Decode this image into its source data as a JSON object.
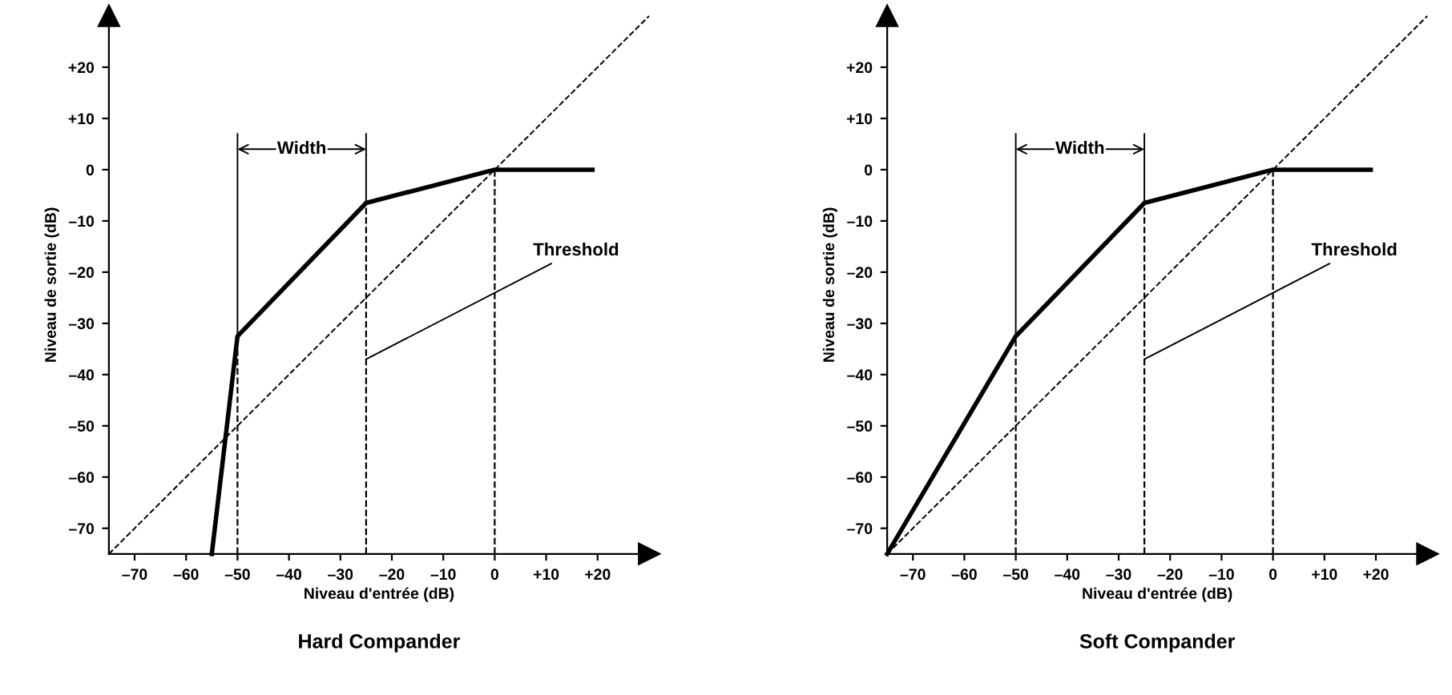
{
  "chart_data": [
    {
      "type": "line",
      "title": "Hard Compander",
      "xlabel": "Niveau d'entrée (dB)",
      "ylabel": "Niveau de sortie (dB)",
      "xlim": [
        -75,
        30
      ],
      "ylim": [
        -75,
        30
      ],
      "xticks": [
        {
          "value": -70,
          "label": "–70"
        },
        {
          "value": -60,
          "label": "–60"
        },
        {
          "value": -50,
          "label": "–50"
        },
        {
          "value": -40,
          "label": "–40"
        },
        {
          "value": -30,
          "label": "–30"
        },
        {
          "value": -20,
          "label": "–20"
        },
        {
          "value": -10,
          "label": "–10"
        },
        0,
        {
          "value": 10,
          "label": "+10"
        },
        {
          "value": 20,
          "label": "+20"
        }
      ],
      "yticks": [
        {
          "value": -70,
          "label": "–70"
        },
        {
          "value": -60,
          "label": "–60"
        },
        {
          "value": -50,
          "label": "–50"
        },
        {
          "value": -40,
          "label": "–40"
        },
        {
          "value": -30,
          "label": "–30"
        },
        {
          "value": -20,
          "label": "–20"
        },
        {
          "value": -10,
          "label": "–10"
        },
        0,
        {
          "value": 10,
          "label": "+10"
        },
        {
          "value": 20,
          "label": "+20"
        }
      ],
      "series": [
        {
          "color": "#000000",
          "line_style": "dashed",
          "x": [
            -75,
            30
          ],
          "values": [
            -75,
            30
          ]
        },
        {
          "color": "#000000",
          "line_style": "solid",
          "x": [
            -55,
            -50,
            -25,
            0,
            19
          ],
          "values": [
            -75,
            -32.5,
            -6.5,
            0,
            0
          ]
        }
      ],
      "ref_lines": [
        {
          "axis": "x",
          "value": -50,
          "line_style": "dashed"
        },
        {
          "axis": "x",
          "value": -25,
          "line_style": "dashed"
        },
        {
          "axis": "x",
          "value": 0,
          "line_style": "dashed"
        }
      ],
      "annotations": [
        "Width",
        {
          "text": "Threshold",
          "x": -25,
          "y": -37
        }
      ],
      "grid": false,
      "legend": false,
      "marker": "none"
    },
    {
      "type": "line",
      "title": "Soft Compander",
      "xlabel": "Niveau d'entrée (dB)",
      "ylabel": "Niveau de sortie (dB)",
      "xlim": [
        -75,
        30
      ],
      "ylim": [
        -75,
        30
      ],
      "xticks": [
        {
          "value": -70,
          "label": "–70"
        },
        {
          "value": -60,
          "label": "–60"
        },
        {
          "value": -50,
          "label": "–50"
        },
        {
          "value": -40,
          "label": "–40"
        },
        {
          "value": -30,
          "label": "–30"
        },
        {
          "value": -20,
          "label": "–20"
        },
        {
          "value": -10,
          "label": "–10"
        },
        0,
        {
          "value": 10,
          "label": "+10"
        },
        {
          "value": 20,
          "label": "+20"
        }
      ],
      "yticks": [
        {
          "value": -70,
          "label": "–70"
        },
        {
          "value": -60,
          "label": "–60"
        },
        {
          "value": -50,
          "label": "–50"
        },
        {
          "value": -40,
          "label": "–40"
        },
        {
          "value": -30,
          "label": "–30"
        },
        {
          "value": -20,
          "label": "–20"
        },
        {
          "value": -10,
          "label": "–10"
        },
        0,
        {
          "value": 10,
          "label": "+10"
        },
        {
          "value": 20,
          "label": "+20"
        }
      ],
      "series": [
        {
          "color": "#000000",
          "line_style": "dashed",
          "x": [
            -75,
            30
          ],
          "values": [
            -75,
            30
          ]
        },
        {
          "color": "#000000",
          "line_style": "solid",
          "x": [
            -75,
            -50,
            -25,
            0,
            19
          ],
          "values": [
            -75,
            -32.5,
            -6.5,
            0,
            0
          ]
        }
      ],
      "ref_lines": [
        {
          "axis": "x",
          "value": -50,
          "line_style": "dashed"
        },
        {
          "axis": "x",
          "value": -25,
          "line_style": "dashed"
        },
        {
          "axis": "x",
          "value": 0,
          "line_style": "dashed"
        }
      ],
      "annotations": [
        "Width",
        {
          "text": "Threshold",
          "x": -25,
          "y": -37
        }
      ],
      "grid": false,
      "legend": false,
      "marker": "none"
    }
  ]
}
